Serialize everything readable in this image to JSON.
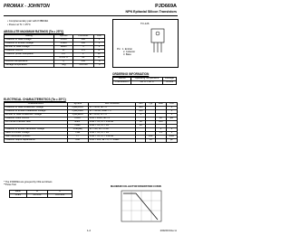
{
  "header": {
    "logo": "PROMAX - JOHNTON",
    "part": "PJD669A",
    "subtitle": "NPN Epitaxial Silicon Transistors"
  },
  "features": [
    "Complementary pair with PJB649A",
    "Power at Tc = 25°C"
  ],
  "package": {
    "name": "TO-126",
    "pins": [
      "Pin : 1. Emitter",
      "2. Collector",
      "3. Base"
    ]
  },
  "abs_max": {
    "title": "ABSOLUTE MAXIMUM RATINGS (Ta = 25°C)",
    "columns": [
      "Rating",
      "Symbol",
      "PJD669A",
      "Unit"
    ],
    "rows": [
      [
        "Collector to base voltage",
        "VCBO",
        "180",
        "V"
      ],
      [
        "Collector to emitter voltage",
        "VCEO",
        "160",
        "V"
      ],
      [
        "Emitter to base voltage",
        "VEBO",
        "5",
        "V"
      ],
      [
        "Collector current",
        "IC",
        "1.5",
        "A"
      ],
      [
        "Collector power dissipation",
        "PC",
        "1",
        "W"
      ],
      [
        "",
        "Tc=25°C",
        "20",
        "W"
      ],
      [
        "Junction temperature",
        "Tj",
        "150",
        "°C"
      ],
      [
        "Storage temperature",
        "Tstg",
        "-55~150",
        "°C"
      ]
    ]
  },
  "ordering": {
    "title": "ORDERING INFORMATION",
    "columns": [
      "Device",
      "Operating Temperature",
      "Package"
    ],
    "rows": [
      [
        "PJD669ACX",
        "-20°C ~ 85°C",
        "TO-126"
      ]
    ]
  },
  "electrical": {
    "title": "ELECTRICAL CHARACTERISTICS (Ta = 25°C)",
    "columns": [
      "Characteristics",
      "Symbol",
      "Test Condition",
      "Min",
      "Typ",
      "Max",
      "Unit"
    ],
    "rows": [
      [
        "Collector to base breakdown voltage",
        "V(BR)CBO",
        "IC = 1mA, IE = 0",
        "180",
        null,
        null,
        "V"
      ],
      [
        "Collector to emitter breakdown voltage",
        "V(BR)CEO",
        "IC = 10mA, RBE = ∞",
        "160",
        null,
        null,
        "V"
      ],
      [
        "Emitter to base breakdown voltage",
        "V(BR)EBO",
        "IE = 1mA, IC = 0",
        "5",
        null,
        null,
        "V"
      ],
      [
        "Collector cutoff current",
        "ICBO",
        "VCB = 160V, IE = 0",
        null,
        null,
        "10",
        "μA"
      ],
      [
        "DC current transfer ratio",
        "hFE1*",
        "VCE = 5V, IC = 150mA",
        "60",
        null,
        "200",
        null
      ],
      [
        null,
        "hFE2",
        "VCE = 5V, IC = 1A",
        "20",
        null,
        null,
        null
      ],
      [
        "Collector to emitter saturation voltage",
        "VCE(sat)",
        "IC = 1A, IB = 0.1A",
        null,
        null,
        "1",
        "V"
      ],
      [
        "Base to emitter voltage",
        "VBE",
        "VCE = 5V, IC = 1A",
        null,
        null,
        "1.5",
        "V"
      ],
      [
        "Gain bandwidth product",
        "fT",
        "VCE = 5V, IC = 150mA",
        null,
        "140",
        null,
        "MHz"
      ],
      [
        "Collector output capacitance",
        "Cob",
        "VCB = 10V, IE = 0, f = 1MHz",
        null,
        "14",
        null,
        "pF"
      ]
    ]
  },
  "notes": [
    "* The PJD669A are grouped by hFE as follows",
    "**Pulse Test"
  ],
  "hfe": {
    "columns": [
      "Rank",
      "B",
      "C"
    ],
    "rows": [
      [
        "hFE1",
        "60~120",
        "100~200"
      ]
    ]
  },
  "graph": {
    "title": "MAXIMUM COLLECTOR DISSIPATION CURVE"
  },
  "footer": {
    "page": "1-2",
    "date": "2002/03 Rev A"
  }
}
